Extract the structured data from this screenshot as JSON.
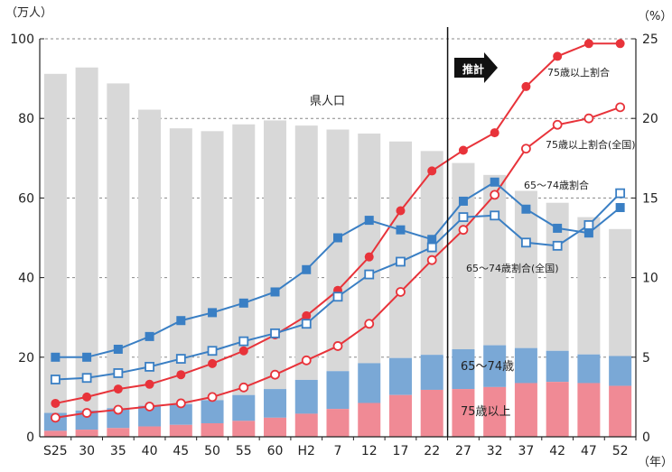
{
  "chart_data": {
    "type": "bar",
    "categories": [
      "S25",
      "30",
      "35",
      "40",
      "45",
      "50",
      "55",
      "60",
      "H2",
      "7",
      "12",
      "17",
      "22",
      "27",
      "32",
      "37",
      "42",
      "47",
      "52"
    ],
    "left_axis": {
      "unit": "（万人）",
      "ylim": [
        0,
        100
      ],
      "ticks": [
        0,
        20,
        40,
        60,
        80,
        100
      ]
    },
    "right_axis": {
      "unit": "（%）",
      "ylim": [
        0,
        25
      ],
      "ticks": [
        0,
        5,
        10,
        15,
        20,
        25
      ]
    },
    "x_unit": "（年）",
    "stacked_bars": [
      {
        "name": "75歳以上",
        "color": "#f08a95",
        "values": [
          1.5,
          1.8,
          2.2,
          2.6,
          3.0,
          3.4,
          4.0,
          4.8,
          5.8,
          7.0,
          8.5,
          10.5,
          11.8,
          12.0,
          12.5,
          13.5,
          13.8,
          13.5,
          12.8
        ]
      },
      {
        "name": "65〜74歳",
        "color": "#7aa8d6",
        "values": [
          4.5,
          4.8,
          5.0,
          5.2,
          5.2,
          5.8,
          6.5,
          7.2,
          8.5,
          9.5,
          10.0,
          9.3,
          8.8,
          10.0,
          10.5,
          8.8,
          7.8,
          7.2,
          7.5
        ]
      },
      {
        "name": "県人口",
        "color": "#d8d8d8",
        "total_values": [
          91.2,
          92.8,
          88.8,
          82.2,
          77.5,
          76.8,
          78.5,
          79.5,
          78.2,
          77.2,
          76.2,
          74.2,
          71.8,
          68.8,
          65.8,
          61.8,
          58.8,
          55.2,
          52.2
        ]
      }
    ],
    "lines": [
      {
        "name": "75歳以上割合",
        "color": "#e8333a",
        "marker": "filled-circle",
        "values": [
          2.1,
          2.5,
          3.0,
          3.3,
          3.9,
          4.6,
          5.4,
          6.4,
          7.6,
          9.2,
          11.3,
          14.2,
          16.7,
          18.0,
          19.1,
          22.0,
          23.9,
          24.7,
          24.7
        ]
      },
      {
        "name": "75歳以上割合(全国)",
        "color": "#e8333a",
        "marker": "open-circle",
        "values": [
          1.2,
          1.5,
          1.7,
          1.9,
          2.1,
          2.5,
          3.1,
          3.9,
          4.8,
          5.7,
          7.1,
          9.1,
          11.1,
          13.0,
          15.2,
          18.1,
          19.6,
          20.0,
          20.7
        ]
      },
      {
        "name": "65〜74歳割合",
        "color": "#3a7fc4",
        "marker": "filled-square",
        "values": [
          5.0,
          5.0,
          5.5,
          6.3,
          7.3,
          7.8,
          8.4,
          9.1,
          10.5,
          12.5,
          13.6,
          13.0,
          12.4,
          14.8,
          16.0,
          14.3,
          13.1,
          12.8,
          14.4
        ]
      },
      {
        "name": "65〜74歳割合(全国)",
        "color": "#3a7fc4",
        "marker": "open-square",
        "values": [
          3.6,
          3.7,
          4.0,
          4.4,
          4.9,
          5.4,
          6.0,
          6.5,
          7.1,
          8.8,
          10.2,
          11.0,
          11.9,
          13.8,
          13.9,
          12.2,
          12.0,
          13.3,
          15.3
        ]
      }
    ],
    "annotations": {
      "projection": "推計",
      "pop": "県人口",
      "ratio75": "75歳以上割合",
      "ratio75n": "75歳以上割合(全国)",
      "ratio65": "65〜74歳割合",
      "ratio65n": "65〜74歳割合(全国)",
      "band65": "65〜74歳",
      "band75": "75歳以上"
    },
    "projection_start_index": 13,
    "grid": "dashed-horizontal",
    "axis_color": "#222222"
  }
}
